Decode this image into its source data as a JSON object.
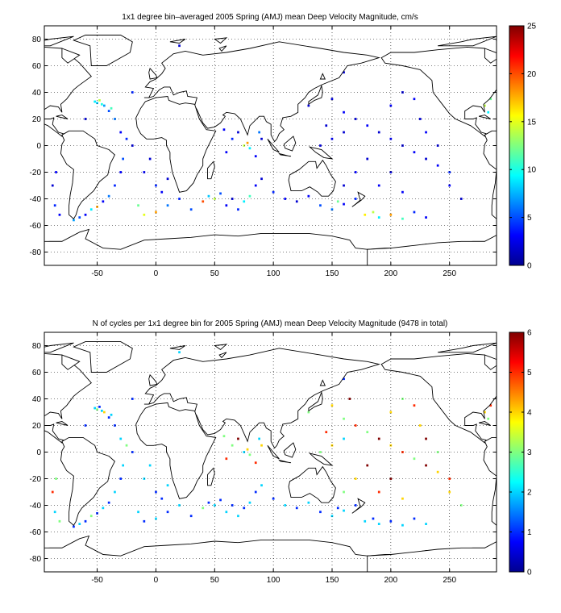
{
  "chart_data": [
    {
      "type": "heatmap",
      "title": "1x1 degree bin–averaged 2005 Spring (AMJ) mean Deep Velocity Magnitude, cm/s",
      "xlabel": "",
      "ylabel": "",
      "xlim": [
        -95,
        290
      ],
      "ylim": [
        -90,
        90
      ],
      "xticks": [
        -50,
        0,
        50,
        100,
        150,
        200,
        250
      ],
      "yticks": [
        80,
        60,
        40,
        20,
        0,
        -20,
        -40,
        -60,
        -80
      ],
      "grid": true,
      "colorbar": {
        "min": 0,
        "max": 25,
        "ticks": [
          0,
          5,
          10,
          15,
          20,
          25
        ],
        "colormap": "jet"
      },
      "cells": [
        [
          -52,
          33,
          9
        ],
        [
          -50,
          32,
          8
        ],
        [
          -48,
          34,
          14
        ],
        [
          -46,
          31,
          10
        ],
        [
          -44,
          30,
          7
        ],
        [
          -40,
          26,
          5
        ],
        [
          -38,
          28,
          11
        ],
        [
          -35,
          20,
          6
        ],
        [
          -30,
          10,
          3
        ],
        [
          -25,
          5,
          4
        ],
        [
          -20,
          0,
          2
        ],
        [
          -28,
          -10,
          5
        ],
        [
          -30,
          -20,
          3
        ],
        [
          -35,
          -30,
          4
        ],
        [
          -40,
          -38,
          6
        ],
        [
          -45,
          -42,
          3
        ],
        [
          -50,
          -46,
          18
        ],
        [
          -55,
          -48,
          9
        ],
        [
          -60,
          -52,
          3
        ],
        [
          -65,
          -54,
          5
        ],
        [
          -70,
          -56,
          7
        ],
        [
          -85,
          -20,
          3
        ],
        [
          -88,
          -30,
          2
        ],
        [
          -86,
          -45,
          4
        ],
        [
          -82,
          -52,
          3
        ],
        [
          -60,
          20,
          2
        ],
        [
          -10,
          30,
          3
        ],
        [
          -20,
          40,
          4
        ],
        [
          -15,
          -45,
          12
        ],
        [
          -10,
          -52,
          15
        ],
        [
          0,
          -50,
          18
        ],
        [
          10,
          -45,
          6
        ],
        [
          20,
          -40,
          4
        ],
        [
          30,
          -48,
          5
        ],
        [
          40,
          -42,
          20
        ],
        [
          45,
          -38,
          8
        ],
        [
          50,
          -40,
          14
        ],
        [
          55,
          -36,
          5
        ],
        [
          60,
          -45,
          3
        ],
        [
          65,
          -40,
          2
        ],
        [
          70,
          -48,
          4
        ],
        [
          75,
          -42,
          9
        ],
        [
          80,
          -38,
          11
        ],
        [
          85,
          -30,
          3
        ],
        [
          90,
          -25,
          2
        ],
        [
          60,
          -5,
          3
        ],
        [
          65,
          5,
          4
        ],
        [
          70,
          10,
          2
        ],
        [
          75,
          0,
          14
        ],
        [
          78,
          2,
          18
        ],
        [
          80,
          -2,
          9
        ],
        [
          85,
          -8,
          3
        ],
        [
          88,
          10,
          6
        ],
        [
          90,
          5,
          2
        ],
        [
          58,
          12,
          3
        ],
        [
          100,
          -35,
          4
        ],
        [
          110,
          -40,
          3
        ],
        [
          120,
          -42,
          2
        ],
        [
          130,
          -38,
          3
        ],
        [
          140,
          -45,
          5
        ],
        [
          150,
          -48,
          6
        ],
        [
          155,
          -42,
          12
        ],
        [
          160,
          -44,
          3
        ],
        [
          170,
          -40,
          4
        ],
        [
          178,
          -52,
          16
        ],
        [
          185,
          -50,
          14
        ],
        [
          190,
          -54,
          9
        ],
        [
          200,
          -52,
          18
        ],
        [
          210,
          -55,
          11
        ],
        [
          220,
          -50,
          4
        ],
        [
          230,
          -54,
          3
        ],
        [
          130,
          30,
          2
        ],
        [
          140,
          40,
          3
        ],
        [
          150,
          35,
          2
        ],
        [
          160,
          25,
          3
        ],
        [
          170,
          20,
          2
        ],
        [
          180,
          15,
          3
        ],
        [
          190,
          10,
          2
        ],
        [
          200,
          5,
          3
        ],
        [
          210,
          0,
          2
        ],
        [
          220,
          -5,
          3
        ],
        [
          230,
          -10,
          2
        ],
        [
          240,
          -15,
          3
        ],
        [
          250,
          -20,
          4
        ],
        [
          180,
          -10,
          2
        ],
        [
          170,
          -20,
          3
        ],
        [
          160,
          -30,
          2
        ],
        [
          190,
          -30,
          3
        ],
        [
          200,
          -20,
          2
        ],
        [
          210,
          -35,
          3
        ],
        [
          140,
          0,
          2
        ],
        [
          150,
          5,
          3
        ],
        [
          160,
          10,
          2
        ],
        [
          145,
          15,
          2
        ],
        [
          200,
          30,
          3
        ],
        [
          210,
          40,
          2
        ],
        [
          220,
          35,
          3
        ],
        [
          225,
          20,
          2
        ],
        [
          230,
          10,
          3
        ],
        [
          240,
          0,
          2
        ],
        [
          250,
          -30,
          3
        ],
        [
          260,
          -40,
          2
        ],
        [
          280,
          30,
          14
        ],
        [
          283,
          25,
          9
        ],
        [
          285,
          35,
          12
        ],
        [
          -10,
          -20,
          3
        ],
        [
          0,
          -30,
          4
        ],
        [
          10,
          -25,
          2
        ],
        [
          5,
          -35,
          3
        ],
        [
          -5,
          -10,
          2
        ],
        [
          140,
          60,
          3
        ],
        [
          160,
          55,
          2
        ],
        [
          20,
          75,
          2
        ]
      ]
    },
    {
      "type": "heatmap",
      "title": "N of cycles per 1x1 degree bin for 2005 Spring (AMJ) mean Deep Velocity Magnitude (9478 in total)",
      "xlabel": "",
      "ylabel": "",
      "xlim": [
        -95,
        290
      ],
      "ylim": [
        -90,
        90
      ],
      "xticks": [
        -50,
        0,
        50,
        100,
        150,
        200,
        250
      ],
      "yticks": [
        80,
        60,
        40,
        20,
        0,
        -20,
        -40,
        -60,
        -80
      ],
      "grid": true,
      "colorbar": {
        "min": 0,
        "max": 6,
        "ticks": [
          0,
          1,
          2,
          3,
          4,
          5,
          6
        ],
        "colormap": "jet"
      },
      "cells": [
        [
          -52,
          33,
          2
        ],
        [
          -50,
          32,
          3
        ],
        [
          -48,
          34,
          1
        ],
        [
          -46,
          31,
          2
        ],
        [
          -44,
          30,
          4
        ],
        [
          -40,
          26,
          1
        ],
        [
          -38,
          28,
          2
        ],
        [
          -35,
          20,
          1
        ],
        [
          -30,
          10,
          2
        ],
        [
          -25,
          5,
          3
        ],
        [
          -20,
          0,
          1
        ],
        [
          -28,
          -10,
          2
        ],
        [
          -30,
          -20,
          1
        ],
        [
          -35,
          -30,
          2
        ],
        [
          -40,
          -38,
          1
        ],
        [
          -45,
          -42,
          2
        ],
        [
          -50,
          -46,
          1
        ],
        [
          -55,
          -48,
          3
        ],
        [
          -60,
          -52,
          1
        ],
        [
          -65,
          -54,
          2
        ],
        [
          -70,
          -56,
          1
        ],
        [
          -85,
          -20,
          3
        ],
        [
          -88,
          -30,
          5
        ],
        [
          -86,
          -45,
          2
        ],
        [
          -82,
          -52,
          3
        ],
        [
          -60,
          20,
          1
        ],
        [
          -10,
          30,
          2
        ],
        [
          -20,
          40,
          1
        ],
        [
          -15,
          -45,
          2
        ],
        [
          -10,
          -52,
          1
        ],
        [
          0,
          -50,
          2
        ],
        [
          10,
          -45,
          1
        ],
        [
          20,
          -40,
          2
        ],
        [
          30,
          -48,
          1
        ],
        [
          40,
          -42,
          3
        ],
        [
          45,
          -38,
          1
        ],
        [
          50,
          -40,
          2
        ],
        [
          55,
          -36,
          1
        ],
        [
          60,
          -45,
          2
        ],
        [
          65,
          -40,
          1
        ],
        [
          70,
          -48,
          2
        ],
        [
          75,
          -42,
          1
        ],
        [
          80,
          -38,
          2
        ],
        [
          85,
          -30,
          1
        ],
        [
          90,
          -25,
          2
        ],
        [
          60,
          -5,
          5
        ],
        [
          65,
          5,
          3
        ],
        [
          70,
          10,
          6
        ],
        [
          75,
          0,
          2
        ],
        [
          78,
          2,
          4
        ],
        [
          80,
          -2,
          3
        ],
        [
          85,
          -8,
          5
        ],
        [
          88,
          10,
          2
        ],
        [
          90,
          5,
          4
        ],
        [
          58,
          12,
          3
        ],
        [
          100,
          -35,
          1
        ],
        [
          110,
          -40,
          2
        ],
        [
          120,
          -42,
          1
        ],
        [
          130,
          -38,
          2
        ],
        [
          140,
          -45,
          1
        ],
        [
          150,
          -48,
          2
        ],
        [
          155,
          -42,
          1
        ],
        [
          160,
          -44,
          2
        ],
        [
          170,
          -40,
          1
        ],
        [
          178,
          -52,
          2
        ],
        [
          185,
          -50,
          1
        ],
        [
          190,
          -54,
          2
        ],
        [
          200,
          -52,
          1
        ],
        [
          210,
          -55,
          2
        ],
        [
          220,
          -50,
          1
        ],
        [
          230,
          -54,
          2
        ],
        [
          130,
          30,
          3
        ],
        [
          140,
          40,
          2
        ],
        [
          150,
          35,
          4
        ],
        [
          160,
          25,
          3
        ],
        [
          170,
          20,
          5
        ],
        [
          180,
          15,
          3
        ],
        [
          190,
          10,
          6
        ],
        [
          200,
          5,
          4
        ],
        [
          210,
          0,
          5
        ],
        [
          220,
          -5,
          3
        ],
        [
          230,
          -10,
          6
        ],
        [
          240,
          -15,
          4
        ],
        [
          250,
          -20,
          5
        ],
        [
          180,
          -10,
          6
        ],
        [
          170,
          -20,
          4
        ],
        [
          160,
          -30,
          3
        ],
        [
          190,
          -30,
          5
        ],
        [
          200,
          -20,
          6
        ],
        [
          210,
          -35,
          4
        ],
        [
          140,
          0,
          3
        ],
        [
          150,
          5,
          4
        ],
        [
          160,
          10,
          2
        ],
        [
          145,
          15,
          5
        ],
        [
          200,
          30,
          4
        ],
        [
          210,
          40,
          3
        ],
        [
          220,
          35,
          5
        ],
        [
          225,
          20,
          4
        ],
        [
          230,
          10,
          6
        ],
        [
          240,
          0,
          3
        ],
        [
          250,
          -30,
          4
        ],
        [
          260,
          -40,
          3
        ],
        [
          280,
          30,
          4
        ],
        [
          283,
          25,
          3
        ],
        [
          285,
          35,
          5
        ],
        [
          -10,
          -20,
          2
        ],
        [
          0,
          -30,
          1
        ],
        [
          10,
          -25,
          2
        ],
        [
          5,
          -35,
          1
        ],
        [
          -5,
          -10,
          2
        ],
        [
          140,
          60,
          2
        ],
        [
          160,
          55,
          1
        ],
        [
          20,
          75,
          2
        ],
        [
          165,
          40,
          6
        ]
      ]
    }
  ],
  "colors": {
    "coastline": "#000000",
    "grid": "#000000",
    "axes": "#000000",
    "background": "#ffffff"
  }
}
